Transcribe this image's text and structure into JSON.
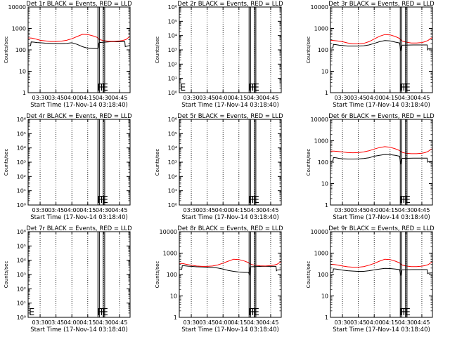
{
  "colors": {
    "events": "#000000",
    "lld": "#ff0000",
    "axis": "#000000",
    "background": "#ffffff"
  },
  "chart_data": [
    {
      "type": "line",
      "title": "Det 1r BLACK = Events, RED = LLD",
      "xlabel": "Start Time (17-Nov-14 03:18:40)",
      "ylabel": "Counts/sec",
      "x_ticks": [
        "03:30",
        "03:45",
        "04:00",
        "04:15",
        "04:30",
        "04:45"
      ],
      "x_tick_minutes": [
        30,
        45,
        60,
        75,
        90,
        105
      ],
      "x_range_minutes": [
        18.67,
        115
      ],
      "y_scale": "log",
      "y_ticks": [
        "1",
        "10",
        "100",
        "1000",
        "10000"
      ],
      "y_tick_values": [
        1,
        10,
        100,
        1000,
        10000
      ],
      "ylim": [
        1,
        10000
      ],
      "markers": [
        "F",
        "F",
        "E"
      ],
      "series": [
        {
          "key": "events",
          "x_minutes": [
            18.67,
            21,
            21.5,
            24,
            27,
            30,
            35,
            40,
            45,
            50,
            55,
            60,
            65,
            70,
            75,
            80,
            84,
            85,
            85.5,
            86,
            97,
            100,
            105,
            108,
            110,
            110.5,
            111,
            115
          ],
          "values": [
            150,
            160,
            235,
            230,
            220,
            215,
            205,
            200,
            198,
            196,
            200,
            215,
            180,
            140,
            120,
            115,
            115,
            120,
            200,
            220,
            240,
            240,
            240,
            240,
            240,
            140,
            145,
            160
          ]
        },
        {
          "key": "lld",
          "x_minutes": [
            18.67,
            22,
            25,
            30,
            35,
            40,
            45,
            50,
            55,
            60,
            65,
            70,
            75,
            80,
            84,
            86,
            90,
            95,
            100,
            105,
            108,
            111,
            113,
            115
          ],
          "values": [
            360,
            355,
            330,
            280,
            260,
            245,
            245,
            255,
            280,
            330,
            420,
            530,
            520,
            450,
            380,
            300,
            270,
            250,
            250,
            260,
            275,
            300,
            360,
            420
          ]
        }
      ]
    },
    {
      "type": "line",
      "title": "Det 2r BLACK = Events, RED = LLD",
      "xlabel": "Start Time (17-Nov-14 03:18:40)",
      "ylabel": "Counts/sec",
      "x_ticks": [
        "03:30",
        "03:45",
        "04:00",
        "04:15",
        "04:30",
        "04:45"
      ],
      "x_tick_minutes": [
        30,
        45,
        60,
        75,
        90,
        105
      ],
      "x_range_minutes": [
        18.67,
        115
      ],
      "y_scale": "log",
      "y_ticks": [
        "10⁰",
        "10¹",
        "10²",
        "10³",
        "10⁴",
        "10⁵",
        "10⁶"
      ],
      "y_tick_values": [
        1,
        10,
        100,
        1000,
        10000,
        100000,
        1000000
      ],
      "ylim": [
        1,
        1000000
      ],
      "markers": [
        "E",
        "F",
        "F",
        "E"
      ],
      "series": []
    },
    {
      "type": "line",
      "title": "Det 3r BLACK = Events, RED = LLD",
      "xlabel": "Start Time (17-Nov-14 03:18:40)",
      "ylabel": "Counts/sec",
      "x_ticks": [
        "03:30",
        "03:45",
        "04:00",
        "04:15",
        "04:30",
        "04:45"
      ],
      "x_tick_minutes": [
        30,
        45,
        60,
        75,
        90,
        105
      ],
      "x_range_minutes": [
        18.67,
        115
      ],
      "y_scale": "log",
      "y_ticks": [
        "1",
        "10",
        "100",
        "1000",
        "10000"
      ],
      "y_tick_values": [
        1,
        10,
        100,
        1000,
        10000
      ],
      "ylim": [
        1,
        10000
      ],
      "markers": [
        "F",
        "F",
        "E"
      ],
      "series": [
        {
          "key": "events",
          "x_minutes": [
            18.67,
            21,
            21.5,
            24,
            27,
            30,
            35,
            40,
            45,
            50,
            55,
            60,
            65,
            70,
            75,
            80,
            84,
            85,
            85.5,
            86,
            97,
            100,
            105,
            108,
            110,
            110.5,
            111,
            115
          ],
          "values": [
            120,
            125,
            180,
            175,
            165,
            160,
            150,
            150,
            150,
            155,
            170,
            200,
            240,
            270,
            260,
            230,
            210,
            90,
            150,
            165,
            170,
            170,
            170,
            170,
            170,
            100,
            110,
            120
          ]
        },
        {
          "key": "lld",
          "x_minutes": [
            18.67,
            22,
            25,
            30,
            35,
            40,
            45,
            50,
            55,
            60,
            65,
            70,
            75,
            80,
            84,
            86,
            90,
            95,
            100,
            105,
            108,
            111,
            113,
            115
          ],
          "values": [
            280,
            270,
            260,
            240,
            210,
            190,
            190,
            200,
            240,
            320,
            430,
            520,
            500,
            420,
            340,
            260,
            230,
            210,
            210,
            220,
            240,
            280,
            330,
            380
          ]
        }
      ]
    },
    {
      "type": "line",
      "title": "Det 4r BLACK = Events, RED = LLD",
      "xlabel": "Start Time (17-Nov-14 03:18:40)",
      "ylabel": "Counts/sec",
      "x_ticks": [
        "03:30",
        "03:45",
        "04:00",
        "04:15",
        "04:30",
        "04:45"
      ],
      "x_tick_minutes": [
        30,
        45,
        60,
        75,
        90,
        105
      ],
      "x_range_minutes": [
        18.67,
        115
      ],
      "y_scale": "log",
      "y_ticks": [
        "10⁰",
        "10¹",
        "10²",
        "10³",
        "10⁴",
        "10⁵",
        "10⁶"
      ],
      "y_tick_values": [
        1,
        10,
        100,
        1000,
        10000,
        100000,
        1000000
      ],
      "ylim": [
        1,
        1000000
      ],
      "markers": [
        "F",
        "F",
        "E"
      ],
      "series": []
    },
    {
      "type": "line",
      "title": "Det 5r BLACK = Events, RED = LLD",
      "xlabel": "Start Time (17-Nov-14 03:18:40)",
      "ylabel": "Counts/sec",
      "x_ticks": [
        "03:30",
        "03:45",
        "04:00",
        "04:15",
        "04:30",
        "04:45"
      ],
      "x_tick_minutes": [
        30,
        45,
        60,
        75,
        90,
        105
      ],
      "x_range_minutes": [
        18.67,
        115
      ],
      "y_scale": "log",
      "y_ticks": [
        "10⁰",
        "10¹",
        "10²",
        "10³",
        "10⁴",
        "10⁵",
        "10⁶"
      ],
      "y_tick_values": [
        1,
        10,
        100,
        1000,
        10000,
        100000,
        1000000
      ],
      "ylim": [
        1,
        1000000
      ],
      "markers": [
        "F",
        "F",
        "E"
      ],
      "series": []
    },
    {
      "type": "line",
      "title": "Det 6r BLACK = Events, RED = LLD",
      "xlabel": "Start Time (17-Nov-14 03:18:40)",
      "ylabel": "Counts/sec",
      "x_ticks": [
        "03:30",
        "03:45",
        "04:00",
        "04:15",
        "04:30",
        "04:45"
      ],
      "x_tick_minutes": [
        30,
        45,
        60,
        75,
        90,
        105
      ],
      "x_range_minutes": [
        18.67,
        115
      ],
      "y_scale": "log",
      "y_ticks": [
        "1",
        "10",
        "100",
        "1000",
        "10000"
      ],
      "y_tick_values": [
        1,
        10,
        100,
        1000,
        10000
      ],
      "ylim": [
        1,
        10000
      ],
      "markers": [
        "F",
        "F",
        "E"
      ],
      "series": [
        {
          "key": "events",
          "x_minutes": [
            18.67,
            21,
            21.5,
            24,
            27,
            30,
            35,
            40,
            45,
            50,
            55,
            60,
            65,
            70,
            75,
            80,
            84,
            85,
            85.5,
            86,
            97,
            100,
            105,
            108,
            110,
            110.5,
            111,
            115
          ],
          "values": [
            110,
            115,
            165,
            160,
            150,
            145,
            140,
            140,
            142,
            148,
            160,
            190,
            210,
            230,
            225,
            210,
            190,
            80,
            135,
            150,
            155,
            155,
            155,
            155,
            155,
            100,
            105,
            110
          ]
        },
        {
          "key": "lld",
          "x_minutes": [
            18.67,
            22,
            25,
            30,
            35,
            40,
            45,
            50,
            55,
            60,
            65,
            70,
            75,
            80,
            84,
            86,
            90,
            95,
            100,
            105,
            108,
            111,
            113,
            115
          ],
          "values": [
            330,
            330,
            320,
            300,
            280,
            275,
            280,
            300,
            340,
            410,
            480,
            530,
            500,
            420,
            350,
            290,
            260,
            250,
            250,
            260,
            280,
            320,
            380,
            430
          ]
        }
      ]
    },
    {
      "type": "line",
      "title": "Det 7r BLACK = Events, RED = LLD",
      "xlabel": "Start Time (17-Nov-14 03:18:40)",
      "ylabel": "Counts/sec",
      "x_ticks": [
        "03:30",
        "03:45",
        "04:00",
        "04:15",
        "04:30",
        "04:45"
      ],
      "x_tick_minutes": [
        30,
        45,
        60,
        75,
        90,
        105
      ],
      "x_range_minutes": [
        18.67,
        115
      ],
      "y_scale": "log",
      "y_ticks": [
        "10⁰",
        "10¹",
        "10²",
        "10³",
        "10⁴",
        "10⁵",
        "10⁶"
      ],
      "y_tick_values": [
        1,
        10,
        100,
        1000,
        10000,
        100000,
        1000000
      ],
      "ylim": [
        1,
        1000000
      ],
      "markers": [
        "E",
        "F",
        "F",
        "E"
      ],
      "series": []
    },
    {
      "type": "line",
      "title": "Det 8r BLACK = Events, RED = LLD",
      "xlabel": "Start Time (17-Nov-14 03:18:40)",
      "ylabel": "Counts/sec",
      "x_ticks": [
        "03:30",
        "03:45",
        "04:00",
        "04:15",
        "04:30",
        "04:45"
      ],
      "x_tick_minutes": [
        30,
        45,
        60,
        75,
        90,
        105
      ],
      "x_range_minutes": [
        18.67,
        115
      ],
      "y_scale": "log",
      "y_ticks": [
        "1",
        "10",
        "100",
        "1000",
        "10000"
      ],
      "y_tick_values": [
        1,
        10,
        100,
        1000,
        10000
      ],
      "ylim": [
        1,
        10000
      ],
      "markers": [
        "F",
        "F",
        "E"
      ],
      "series": [
        {
          "key": "events",
          "x_minutes": [
            18.67,
            21,
            21.5,
            24,
            27,
            30,
            35,
            40,
            45,
            50,
            55,
            60,
            65,
            70,
            75,
            80,
            84,
            85,
            85.5,
            86,
            97,
            100,
            105,
            108,
            110,
            110.5,
            111,
            115
          ],
          "values": [
            170,
            175,
            260,
            255,
            245,
            240,
            230,
            225,
            220,
            215,
            200,
            180,
            155,
            140,
            130,
            125,
            125,
            100,
            200,
            230,
            240,
            240,
            240,
            240,
            240,
            150,
            160,
            170
          ]
        },
        {
          "key": "lld",
          "x_minutes": [
            18.67,
            22,
            25,
            30,
            35,
            40,
            45,
            50,
            55,
            60,
            65,
            70,
            75,
            80,
            84,
            86,
            90,
            95,
            100,
            105,
            108,
            111,
            113,
            115
          ],
          "values": [
            330,
            325,
            300,
            270,
            250,
            240,
            240,
            250,
            280,
            340,
            420,
            520,
            500,
            430,
            360,
            300,
            270,
            255,
            250,
            260,
            275,
            300,
            350,
            410
          ]
        }
      ]
    },
    {
      "type": "line",
      "title": "Det 9r BLACK = Events, RED = LLD",
      "xlabel": "Start Time (17-Nov-14 03:18:40)",
      "ylabel": "Counts/sec",
      "x_ticks": [
        "03:30",
        "03:45",
        "04:00",
        "04:15",
        "04:30",
        "04:45"
      ],
      "x_tick_minutes": [
        30,
        45,
        60,
        75,
        90,
        105
      ],
      "x_range_minutes": [
        18.67,
        115
      ],
      "y_scale": "log",
      "y_ticks": [
        "1",
        "10",
        "100",
        "1000",
        "10000"
      ],
      "y_tick_values": [
        1,
        10,
        100,
        1000,
        10000
      ],
      "ylim": [
        1,
        10000
      ],
      "markers": [
        "F",
        "F",
        "E"
      ],
      "series": [
        {
          "key": "events",
          "x_minutes": [
            18.67,
            21,
            21.5,
            24,
            27,
            30,
            35,
            40,
            45,
            50,
            55,
            60,
            65,
            70,
            75,
            80,
            84,
            85,
            85.5,
            86,
            97,
            100,
            105,
            108,
            110,
            110.5,
            111,
            115
          ],
          "values": [
            120,
            125,
            185,
            180,
            170,
            160,
            150,
            145,
            140,
            140,
            150,
            165,
            180,
            195,
            190,
            180,
            170,
            90,
            150,
            165,
            170,
            170,
            170,
            170,
            170,
            110,
            115,
            120
          ]
        },
        {
          "key": "lld",
          "x_minutes": [
            18.67,
            22,
            25,
            30,
            35,
            40,
            45,
            50,
            55,
            60,
            65,
            70,
            75,
            80,
            84,
            86,
            90,
            95,
            100,
            105,
            108,
            111,
            113,
            115
          ],
          "values": [
            300,
            295,
            280,
            250,
            230,
            220,
            220,
            235,
            270,
            330,
            420,
            520,
            500,
            420,
            350,
            280,
            250,
            235,
            235,
            245,
            260,
            290,
            340,
            390
          ]
        }
      ]
    }
  ]
}
